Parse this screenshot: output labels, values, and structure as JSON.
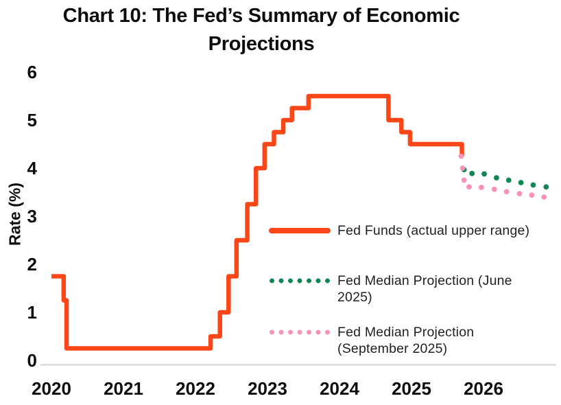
{
  "title": "Chart 10: The Fed’s Summary of Economic Projections",
  "y_axis_label": "Rate (%)",
  "colors": {
    "fed_funds": "#FB4617",
    "june_projection": "#0E8755",
    "september_projection": "#F893B3",
    "axis_line": "#DBDBDB",
    "text": "#0D0D0D"
  },
  "legend": [
    {
      "label": "Fed Funds (actual upper range)",
      "lines": [
        "Fed Funds (actual upper range)"
      ],
      "swatch": "line",
      "series": "fed_funds"
    },
    {
      "label": "Fed Median Projection (June 2025)",
      "lines": [
        "Fed Median Projection (June",
        "2025)"
      ],
      "swatch": "dots",
      "series": "june_projection"
    },
    {
      "label": "Fed Median Projection (September 2025)",
      "lines": [
        "Fed Median Projection",
        "(September 2025)"
      ],
      "swatch": "dots",
      "series": "september_projection"
    }
  ],
  "chart_data": {
    "type": "line",
    "title": "Chart 10: The Fed’s Summary of Economic Projections",
    "xlabel": "",
    "ylabel": "Rate (%)",
    "xlim": [
      2020,
      2027
    ],
    "ylim": [
      0,
      6
    ],
    "x_ticks": [
      "2020",
      "2021",
      "2022",
      "2023",
      "2024",
      "2025",
      "2026"
    ],
    "y_ticks": [
      "0",
      "1",
      "2",
      "3",
      "4",
      "5",
      "6"
    ],
    "grid": false,
    "legend_position": "inside-right",
    "series": [
      {
        "name": "Fed Funds (actual upper range)",
        "style": "step",
        "color_key": "fed_funds",
        "points": [
          [
            2020.0,
            1.75
          ],
          [
            2020.17,
            1.25
          ],
          [
            2020.21,
            0.25
          ],
          [
            2022.21,
            0.5
          ],
          [
            2022.34,
            1.0
          ],
          [
            2022.46,
            1.75
          ],
          [
            2022.57,
            2.5
          ],
          [
            2022.72,
            3.25
          ],
          [
            2022.84,
            4.0
          ],
          [
            2022.96,
            4.5
          ],
          [
            2023.09,
            4.75
          ],
          [
            2023.22,
            5.0
          ],
          [
            2023.34,
            5.25
          ],
          [
            2023.57,
            5.5
          ],
          [
            2024.68,
            5.0
          ],
          [
            2024.86,
            4.75
          ],
          [
            2024.98,
            4.5
          ],
          [
            2025.7,
            4.25
          ]
        ]
      },
      {
        "name": "Fed Median Projection (June 2025)",
        "style": "dots",
        "color_key": "june_projection",
        "points": [
          [
            2025.73,
            3.97
          ],
          [
            2025.84,
            3.89
          ],
          [
            2026.01,
            3.88
          ],
          [
            2026.18,
            3.8
          ],
          [
            2026.35,
            3.75
          ],
          [
            2026.52,
            3.7
          ],
          [
            2026.69,
            3.65
          ],
          [
            2026.87,
            3.61
          ]
        ]
      },
      {
        "name": "Fed Median Projection (September 2025)",
        "style": "dots",
        "color_key": "september_projection",
        "points": [
          [
            2025.69,
            4.25
          ],
          [
            2025.71,
            4.0
          ],
          [
            2025.73,
            3.75
          ],
          [
            2025.8,
            3.61
          ],
          [
            2025.97,
            3.6
          ],
          [
            2026.15,
            3.56
          ],
          [
            2026.32,
            3.51
          ],
          [
            2026.5,
            3.47
          ],
          [
            2026.67,
            3.44
          ],
          [
            2026.84,
            3.4
          ]
        ]
      }
    ]
  }
}
